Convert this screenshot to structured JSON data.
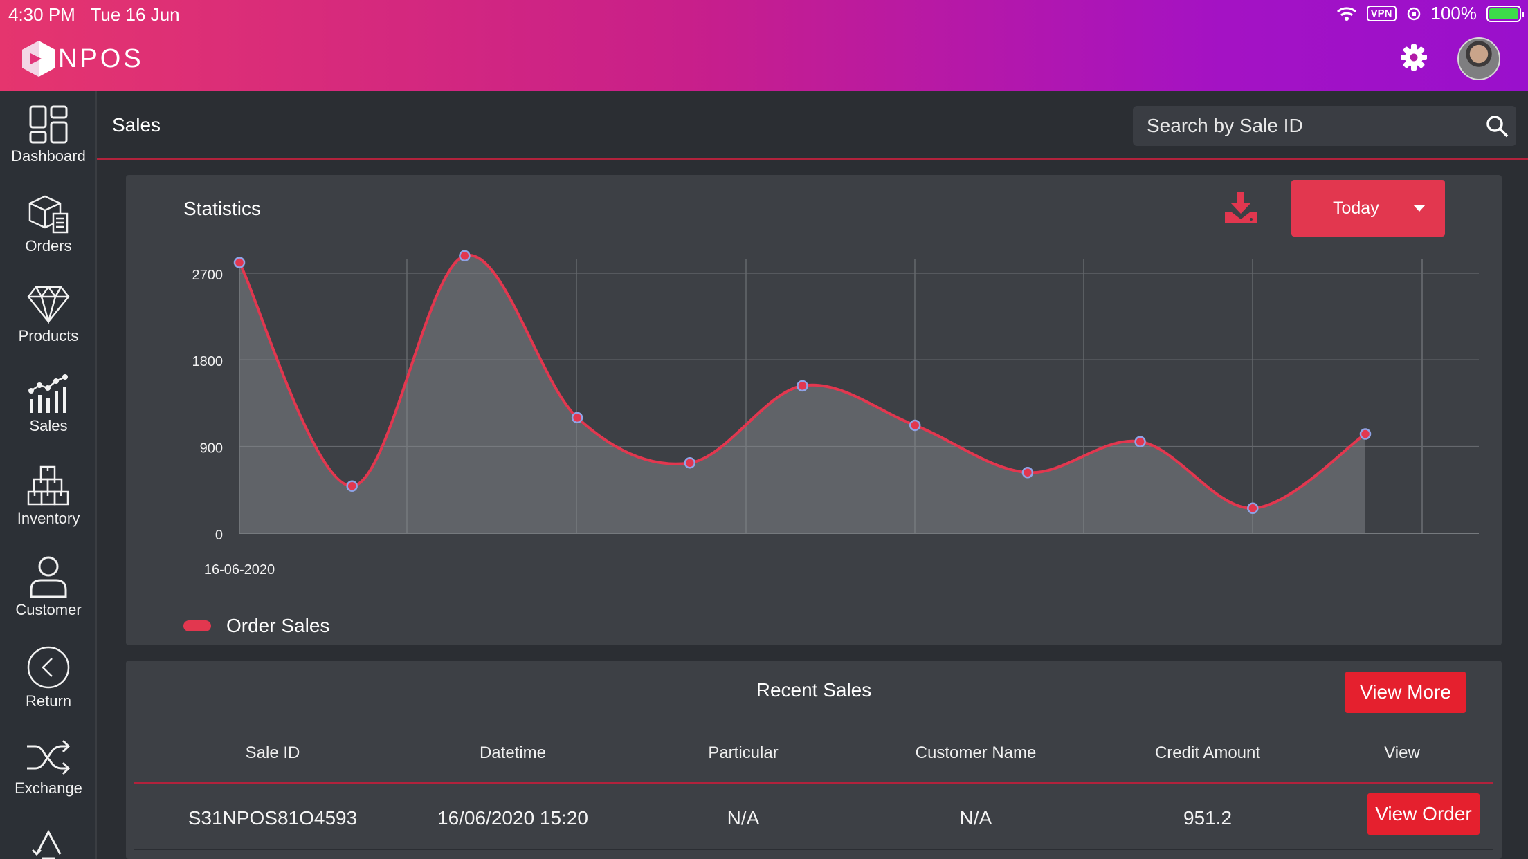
{
  "status_bar": {
    "time": "4:30 PM",
    "date": "Tue 16 Jun",
    "vpn": "VPN",
    "battery": "100%"
  },
  "app": {
    "logo_text": "NPOS"
  },
  "sidebar": {
    "items": [
      {
        "label": "Dashboard",
        "icon": "dashboard-icon"
      },
      {
        "label": "Orders",
        "icon": "orders-icon"
      },
      {
        "label": "Products",
        "icon": "diamond-icon"
      },
      {
        "label": "Sales",
        "icon": "sales-chart-icon"
      },
      {
        "label": "Inventory",
        "icon": "inventory-boxes-icon"
      },
      {
        "label": "Customer",
        "icon": "user-icon"
      },
      {
        "label": "Return",
        "icon": "back-circle-icon"
      },
      {
        "label": "Exchange",
        "icon": "shuffle-icon"
      }
    ]
  },
  "header": {
    "title": "Sales",
    "search_placeholder": "Search by Sale ID"
  },
  "statistics": {
    "title": "Statistics",
    "period_button": "Today",
    "legend_label": "Order Sales",
    "accent": "#e2374f"
  },
  "chart_data": {
    "type": "area",
    "x_tick_label": "16-06-2020",
    "y_ticks": [
      0,
      900,
      1800,
      2700
    ],
    "ylim": [
      0,
      2900
    ],
    "grid": true,
    "legend_position": "bottom-left",
    "series": [
      {
        "name": "Order Sales",
        "color": "#e2374f",
        "values": [
          2810,
          490,
          2880,
          1200,
          730,
          1530,
          1120,
          630,
          950,
          260,
          1030
        ]
      }
    ]
  },
  "recent_sales": {
    "title": "Recent Sales",
    "view_more": "View More",
    "columns": [
      "Sale ID",
      "Datetime",
      "Particular",
      "Customer Name",
      "Credit Amount",
      "View"
    ],
    "rows": [
      {
        "sale_id": "S31NPOS81O4593",
        "datetime": "16/06/2020 15:20",
        "particular": "N/A",
        "customer": "N/A",
        "credit": "951.2",
        "action": "View Order"
      }
    ]
  }
}
